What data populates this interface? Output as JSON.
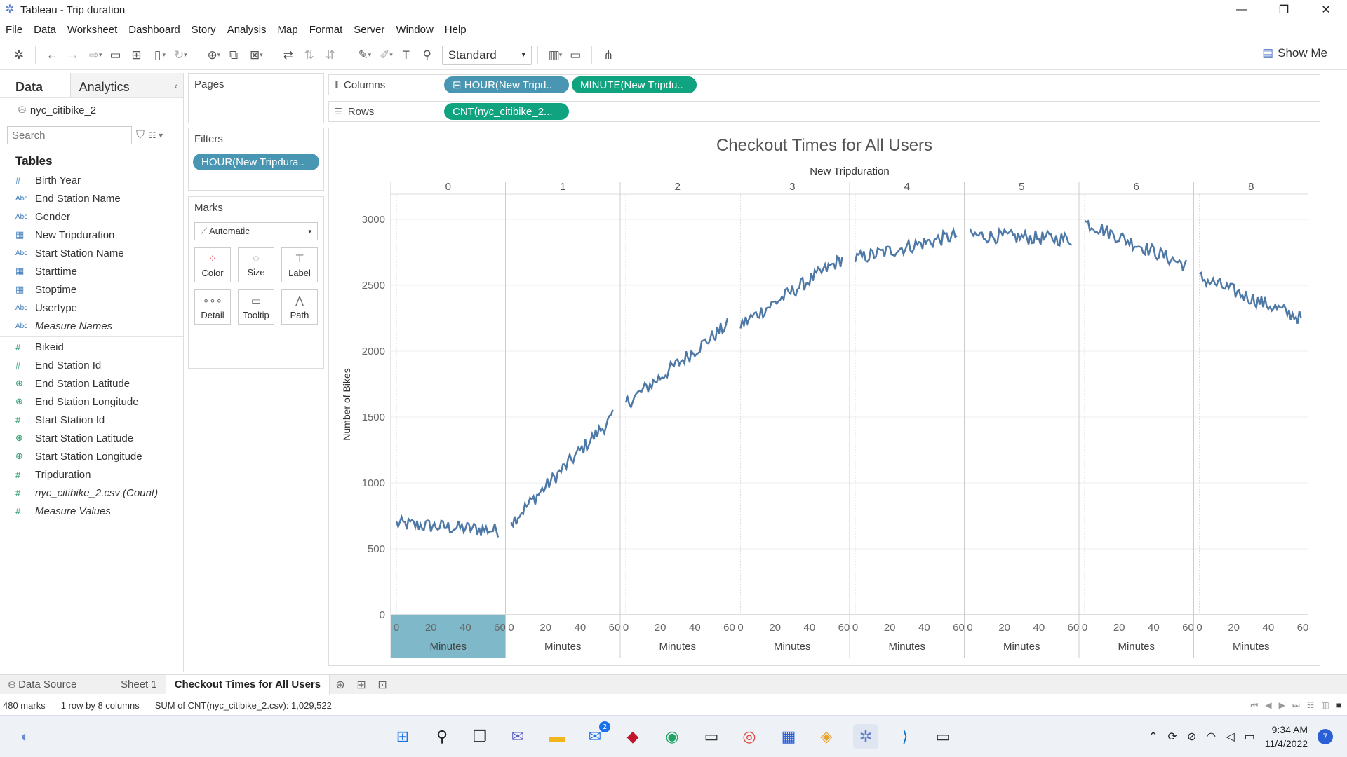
{
  "window": {
    "title": "Tableau - Trip duration"
  },
  "menu": [
    "File",
    "Data",
    "Worksheet",
    "Dashboard",
    "Story",
    "Analysis",
    "Map",
    "Format",
    "Server",
    "Window",
    "Help"
  ],
  "toolbar": {
    "fit_select": "Standard",
    "show_me": "Show Me"
  },
  "datapane": {
    "tab_data": "Data",
    "tab_analytics": "Analytics",
    "datasource": "nyc_citibike_2",
    "search_placeholder": "Search",
    "tables_heading": "Tables",
    "dimensions": [
      {
        "type": "#",
        "name": "Birth Year"
      },
      {
        "type": "Abc",
        "name": "End Station Name"
      },
      {
        "type": "Abc",
        "name": "Gender"
      },
      {
        "type": "▦",
        "name": "New Tripduration"
      },
      {
        "type": "Abc",
        "name": "Start Station Name"
      },
      {
        "type": "▦",
        "name": "Starttime"
      },
      {
        "type": "▦",
        "name": "Stoptime"
      },
      {
        "type": "Abc",
        "name": "Usertype"
      },
      {
        "type": "Abc",
        "name": "Measure Names",
        "italic": true
      }
    ],
    "measures": [
      {
        "type": "#",
        "name": "Bikeid"
      },
      {
        "type": "#",
        "name": "End Station Id"
      },
      {
        "type": "⊕",
        "name": "End Station Latitude"
      },
      {
        "type": "⊕",
        "name": "End Station Longitude"
      },
      {
        "type": "#",
        "name": "Start Station Id"
      },
      {
        "type": "⊕",
        "name": "Start Station Latitude"
      },
      {
        "type": "⊕",
        "name": "Start Station Longitude"
      },
      {
        "type": "#",
        "name": "Tripduration"
      },
      {
        "type": "#",
        "name": "nyc_citibike_2.csv (Count)",
        "italic": true
      },
      {
        "type": "#",
        "name": "Measure Values",
        "italic": true
      }
    ]
  },
  "cards": {
    "pages": "Pages",
    "filters": "Filters",
    "filter_pill": "HOUR(New Tripdura..",
    "marks": "Marks",
    "marks_type": "Automatic",
    "mark_buttons": [
      "Color",
      "Size",
      "Label",
      "Detail",
      "Tooltip",
      "Path"
    ]
  },
  "shelves": {
    "columns_label": "Columns",
    "rows_label": "Rows",
    "columns_pills": [
      "⊟ HOUR(New Tripd..",
      "MINUTE(New Tripdu.."
    ],
    "rows_pills": [
      "CNT(nyc_citibike_2..."
    ]
  },
  "chart_data": {
    "type": "line",
    "title": "Checkout Times for All Users",
    "header_label": "New Tripduration",
    "xlabel": "Minutes",
    "ylabel": "Number of Bikes",
    "ylim": [
      0,
      3000
    ],
    "yticks": [
      0,
      500,
      1000,
      1500,
      2000,
      2500,
      3000
    ],
    "xticks": [
      0,
      20,
      40,
      60
    ],
    "xlim": [
      0,
      60
    ],
    "line_color": "#4e79a7",
    "selected_panel_color": "#7fb8c8",
    "panels": [
      {
        "hour": "0",
        "start": 690,
        "end": 640,
        "trend": "flat"
      },
      {
        "hour": "1",
        "start": 700,
        "end": 1500,
        "trend": "rise"
      },
      {
        "hour": "2",
        "start": 1600,
        "end": 2200,
        "trend": "rise"
      },
      {
        "hour": "3",
        "start": 2200,
        "end": 2700,
        "trend": "rise"
      },
      {
        "hour": "4",
        "start": 2700,
        "end": 2880,
        "trend": "rise"
      },
      {
        "hour": "5",
        "start": 2880,
        "end": 2850,
        "trend": "flat"
      },
      {
        "hour": "6",
        "start": 2980,
        "end": 2650,
        "trend": "fall"
      },
      {
        "hour": "8",
        "start": 2560,
        "end": 2250,
        "trend": "fall"
      }
    ]
  },
  "sheettabs": {
    "datasource": "Data Source",
    "sheet1": "Sheet 1",
    "active": "Checkout Times for All Users"
  },
  "status": {
    "marks": "480 marks",
    "layout": "1 row by 8 columns",
    "sum": "SUM of CNT(nyc_citibike_2.csv): 1,029,522"
  },
  "clock": {
    "time": "9:34 AM",
    "date": "11/4/2022",
    "notifications": "7",
    "mail_badge": "2"
  }
}
